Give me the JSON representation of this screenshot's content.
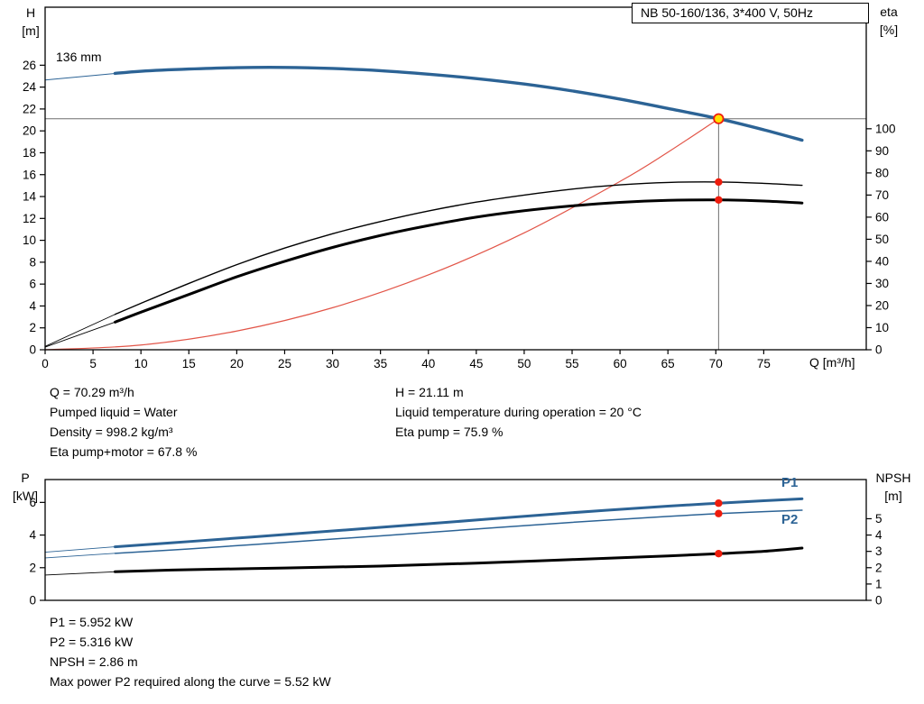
{
  "window": {
    "title_box": "NB 50-160/136, 3*400 V, 50Hz"
  },
  "top_chart": {
    "y_left_label_1": "H",
    "y_left_label_2": "[m]",
    "y_right_label_1": "eta",
    "y_right_label_2": "[%]",
    "x_label": "Q [m³/h]",
    "curve_label": "136 mm"
  },
  "operating_point_info": {
    "col1": [
      "Q = 70.29 m³/h",
      "Pumped liquid = Water",
      "Density = 998.2 kg/m³",
      "Eta pump+motor = 67.8 %"
    ],
    "col2": [
      "H = 21.11 m",
      "Liquid temperature during operation = 20 °C",
      "Eta pump = 75.9 %"
    ]
  },
  "bottom_chart": {
    "y_left_label_1": "P",
    "y_left_label_2": "[kW]",
    "y_right_label_1": "NPSH",
    "y_right_label_2": "[m]",
    "p1_label": "P1",
    "p2_label": "P2"
  },
  "power_info": [
    "P1 = 5.952 kW",
    "P2 = 5.316 kW",
    "NPSH = 2.86 m",
    "Max power P2 required along the curve = 5.52 kW"
  ],
  "colors": {
    "curve_blue": "#2c6395",
    "efficiency_black": "#000000",
    "system_curve_red": "#e25548",
    "marker_red": "#ee1c0c",
    "marker_yellow": "#ffe100",
    "crosshair": "#6e6e6e",
    "frame": "#000000"
  },
  "chart_data": [
    {
      "id": "hq-chart",
      "type": "line",
      "title": "NB 50-160/136, 3*400 V, 50Hz",
      "xlabel": "Q [m³/h]",
      "ylabel_left": "H [m]",
      "ylabel_right": "eta [%]",
      "xlim": [
        0,
        85.7
      ],
      "ylim_left": [
        0,
        31.3
      ],
      "ylim_right": [
        0,
        155
      ],
      "xticks": [
        0,
        5,
        10,
        15,
        20,
        25,
        30,
        35,
        40,
        45,
        50,
        55,
        60,
        65,
        70,
        75
      ],
      "yticks_left": [
        0,
        2,
        4,
        6,
        8,
        10,
        12,
        14,
        16,
        18,
        20,
        22,
        24,
        26
      ],
      "yticks_right": [
        0,
        10,
        20,
        30,
        40,
        50,
        60,
        70,
        80,
        90,
        100
      ],
      "legend": [
        {
          "label": "136 mm",
          "series": "pump-curve-136mm"
        }
      ],
      "duty_point": {
        "q": 70.29,
        "h": 21.11,
        "eta_pump": 75.9,
        "eta_pump_motor": 67.8
      },
      "crosshair": {
        "q": 70.29,
        "h": 21.11
      },
      "series": [
        {
          "name": "system-curve",
          "axis": "left",
          "color": "#e25548",
          "width": 1.2,
          "points": [
            [
              0,
              0
            ],
            [
              10,
              0.43
            ],
            [
              20,
              1.71
            ],
            [
              30,
              3.84
            ],
            [
              40,
              6.84
            ],
            [
              50,
              10.68
            ],
            [
              60,
              15.38
            ],
            [
              65,
              18.05
            ],
            [
              70.29,
              21.11
            ]
          ]
        },
        {
          "name": "pump-curve-136mm-extension",
          "axis": "left",
          "color": "#2c6395",
          "width": 1,
          "points": [
            [
              0,
              24.65
            ],
            [
              7.3,
              25.25
            ]
          ]
        },
        {
          "name": "pump-curve-136mm",
          "axis": "left",
          "color": "#2c6395",
          "width": 3.4,
          "points": [
            [
              7.3,
              25.25
            ],
            [
              10,
              25.45
            ],
            [
              15,
              25.65
            ],
            [
              20,
              25.78
            ],
            [
              25,
              25.8
            ],
            [
              30,
              25.7
            ],
            [
              35,
              25.5
            ],
            [
              40,
              25.18
            ],
            [
              45,
              24.78
            ],
            [
              50,
              24.28
            ],
            [
              55,
              23.65
            ],
            [
              60,
              22.9
            ],
            [
              65,
              22.05
            ],
            [
              70.29,
              21.11
            ],
            [
              75,
              20.1
            ],
            [
              79,
              19.15
            ]
          ]
        },
        {
          "name": "eta-pump-curve-extension",
          "axis": "right",
          "color": "#000000",
          "width": 0.9,
          "points": [
            [
              0,
              1.5
            ],
            [
              7.3,
              16
            ]
          ]
        },
        {
          "name": "eta-pump-curve",
          "axis": "right",
          "color": "#000000",
          "width": 1.4,
          "points": [
            [
              7.3,
              16
            ],
            [
              10,
              21
            ],
            [
              15,
              30
            ],
            [
              20,
              38.5
            ],
            [
              25,
              46
            ],
            [
              30,
              52.5
            ],
            [
              35,
              58
            ],
            [
              40,
              62.8
            ],
            [
              45,
              66.8
            ],
            [
              50,
              70
            ],
            [
              55,
              72.7
            ],
            [
              60,
              74.6
            ],
            [
              65,
              75.7
            ],
            [
              70.29,
              75.9
            ],
            [
              75,
              75.3
            ],
            [
              79,
              74.4
            ]
          ]
        },
        {
          "name": "eta-pump-motor-curve-extension",
          "axis": "right",
          "color": "#000000",
          "width": 0.9,
          "points": [
            [
              0,
              1.2
            ],
            [
              7.3,
              12.5
            ]
          ]
        },
        {
          "name": "eta-pump-motor-curve",
          "axis": "right",
          "color": "#000000",
          "width": 3,
          "points": [
            [
              7.3,
              12.5
            ],
            [
              10,
              17
            ],
            [
              15,
              25
            ],
            [
              20,
              33
            ],
            [
              25,
              40
            ],
            [
              30,
              46.3
            ],
            [
              35,
              51.7
            ],
            [
              40,
              56.2
            ],
            [
              45,
              60
            ],
            [
              50,
              62.9
            ],
            [
              55,
              65.1
            ],
            [
              60,
              66.7
            ],
            [
              65,
              67.6
            ],
            [
              70.29,
              67.8
            ],
            [
              75,
              67.3
            ],
            [
              79,
              66.4
            ]
          ]
        }
      ],
      "markers": [
        {
          "name": "duty-point-eta-pump",
          "axis": "right",
          "q": 70.29,
          "v": 75.9,
          "style": "dot"
        },
        {
          "name": "duty-point-eta-pump-motor",
          "axis": "right",
          "q": 70.29,
          "v": 67.8,
          "style": "dot"
        },
        {
          "name": "duty-point-qh",
          "axis": "left",
          "q": 70.29,
          "v": 21.11,
          "style": "duty"
        }
      ]
    },
    {
      "id": "power-npsh-chart",
      "type": "line",
      "xlabel": "Q [m³/h]",
      "ylabel_left": "P [kW]",
      "ylabel_right": "NPSH [m]",
      "xlim": [
        0,
        85.7
      ],
      "ylim_left": [
        0,
        7.4
      ],
      "ylim_right": [
        0,
        7.4
      ],
      "xticks": [],
      "xtick_labels": false,
      "yticks_left": [
        0,
        2,
        4,
        6
      ],
      "yticks_right": [
        0,
        1,
        2,
        3,
        4,
        5
      ],
      "duty_point": {
        "q": 70.29,
        "p1": 5.952,
        "p2": 5.316,
        "npsh": 2.86
      },
      "series": [
        {
          "name": "npsh-curve-extension",
          "axis": "right",
          "color": "#000000",
          "width": 0.9,
          "points": [
            [
              0,
              1.55
            ],
            [
              7.3,
              1.75
            ]
          ]
        },
        {
          "name": "npsh-curve",
          "axis": "right",
          "color": "#000000",
          "width": 3,
          "points": [
            [
              7.3,
              1.75
            ],
            [
              15,
              1.88
            ],
            [
              25,
              1.98
            ],
            [
              35,
              2.1
            ],
            [
              45,
              2.28
            ],
            [
              55,
              2.5
            ],
            [
              65,
              2.72
            ],
            [
              70.29,
              2.86
            ],
            [
              75,
              3.0
            ],
            [
              79,
              3.2
            ]
          ]
        },
        {
          "name": "p2-curve-extension",
          "axis": "left",
          "color": "#2c6395",
          "width": 0.9,
          "points": [
            [
              0,
              2.6
            ],
            [
              7.3,
              2.88
            ]
          ]
        },
        {
          "name": "p2-curve",
          "axis": "left",
          "color": "#2c6395",
          "width": 1.5,
          "points": [
            [
              7.3,
              2.88
            ],
            [
              15,
              3.15
            ],
            [
              25,
              3.55
            ],
            [
              35,
              3.95
            ],
            [
              45,
              4.37
            ],
            [
              55,
              4.78
            ],
            [
              65,
              5.14
            ],
            [
              70.29,
              5.316
            ],
            [
              75,
              5.43
            ],
            [
              79,
              5.52
            ]
          ]
        },
        {
          "name": "p1-curve-extension",
          "axis": "left",
          "color": "#2c6395",
          "width": 0.9,
          "points": [
            [
              0,
              2.95
            ],
            [
              7.3,
              3.28
            ]
          ]
        },
        {
          "name": "p1-curve",
          "axis": "left",
          "color": "#2c6395",
          "width": 3,
          "points": [
            [
              7.3,
              3.28
            ],
            [
              15,
              3.6
            ],
            [
              25,
              4.03
            ],
            [
              35,
              4.47
            ],
            [
              45,
              4.92
            ],
            [
              55,
              5.37
            ],
            [
              65,
              5.77
            ],
            [
              70.29,
              5.952
            ],
            [
              75,
              6.1
            ],
            [
              79,
              6.22
            ]
          ]
        }
      ],
      "markers": [
        {
          "name": "duty-point-p1",
          "axis": "left",
          "q": 70.29,
          "v": 5.952,
          "style": "dot"
        },
        {
          "name": "duty-point-p2",
          "axis": "left",
          "q": 70.29,
          "v": 5.316,
          "style": "dot"
        },
        {
          "name": "duty-point-npsh",
          "axis": "right",
          "q": 70.29,
          "v": 2.86,
          "style": "dot"
        }
      ]
    }
  ]
}
